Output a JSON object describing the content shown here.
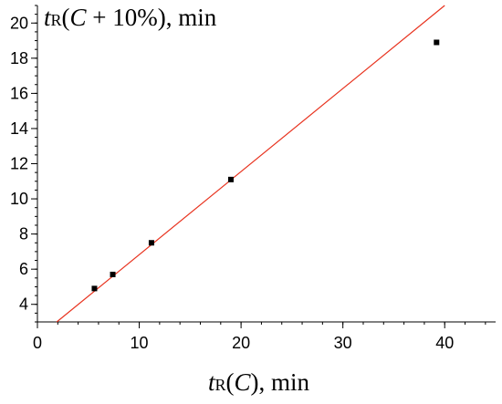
{
  "chart_data": {
    "type": "scatter",
    "title": "",
    "xlabel": "tR(C), min",
    "ylabel": "tR(C + 10%), min",
    "xlabel_parts": {
      "main": "t",
      "sub": "R",
      "rest_italic": "C",
      "open": "(",
      "close": "), min"
    },
    "ylabel_parts": {
      "main": "t",
      "sub": "R",
      "open": "(",
      "rest_italic": "C",
      "close": " + 10%), min"
    },
    "xlim": [
      0,
      45
    ],
    "ylim": [
      3,
      21
    ],
    "x_ticks": [
      "0",
      "10",
      "20",
      "30",
      "40"
    ],
    "x_tick_values": [
      0,
      10,
      20,
      30,
      40
    ],
    "y_ticks": [
      "4",
      "6",
      "8",
      "10",
      "12",
      "14",
      "16",
      "18",
      "20"
    ],
    "y_tick_values": [
      4,
      6,
      8,
      10,
      12,
      14,
      16,
      18,
      20
    ],
    "x_minor_step": 2,
    "y_minor_step": 0.5,
    "grid": false,
    "points": [
      {
        "x": 5.6,
        "y": 4.9
      },
      {
        "x": 7.4,
        "y": 5.7
      },
      {
        "x": 11.2,
        "y": 7.5
      },
      {
        "x": 19.0,
        "y": 11.1
      },
      {
        "x": 39.2,
        "y": 18.9
      }
    ],
    "fit_line": {
      "x1": 1.9,
      "y1": 3.0,
      "x2": 40.0,
      "y2": 21.0
    },
    "colors": {
      "points": "#000000",
      "fit_line": "#e8321e",
      "axes": "#000000"
    }
  }
}
